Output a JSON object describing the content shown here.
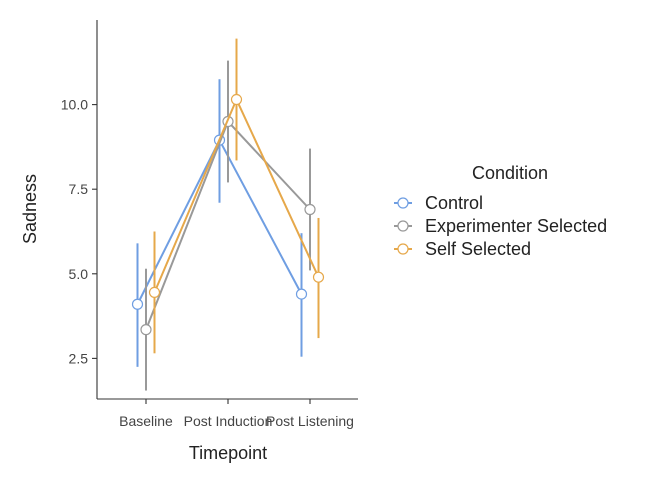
{
  "chart_data": {
    "type": "line",
    "xlabel": "Timepoint",
    "ylabel": "Sadness",
    "categories": [
      "Baseline",
      "Post Induction",
      "Post Listening"
    ],
    "ylim": [
      1.3,
      12.5
    ],
    "yticks": [
      2.5,
      5.0,
      7.5,
      10.0
    ],
    "ytick_labels": [
      "2.5",
      "5.0",
      "7.5",
      "10.0"
    ],
    "grid": false,
    "legend": {
      "title": "Condition",
      "placement": "right"
    },
    "series": [
      {
        "name": "Control",
        "color": "#6f9ee2",
        "values": [
          4.1,
          8.95,
          4.4
        ],
        "lower": [
          2.25,
          7.1,
          2.55
        ],
        "upper": [
          5.9,
          10.75,
          6.2
        ]
      },
      {
        "name": "Experimenter Selected",
        "color": "#999999",
        "values": [
          3.35,
          9.5,
          6.9
        ],
        "lower": [
          1.55,
          7.7,
          5.1
        ],
        "upper": [
          5.15,
          11.3,
          8.7
        ]
      },
      {
        "name": "Self Selected",
        "color": "#e6a84a",
        "values": [
          4.45,
          10.15,
          4.9
        ],
        "lower": [
          2.65,
          8.35,
          3.1
        ],
        "upper": [
          6.25,
          11.95,
          6.65
        ]
      }
    ]
  }
}
